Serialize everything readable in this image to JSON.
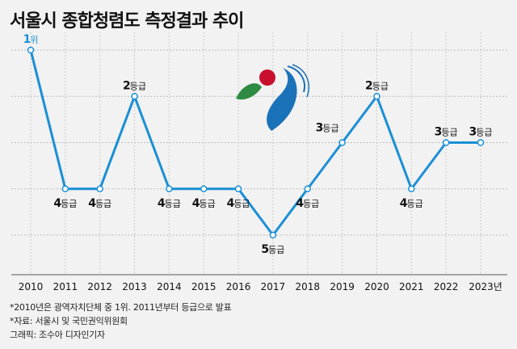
{
  "title": "서울시 종합청렴도 측정결과 추이",
  "chart_data": {
    "type": "line",
    "title": "서울시 종합청렴도 측정결과 추이",
    "x": [
      "2010",
      "2011",
      "2012",
      "2013",
      "2014",
      "2015",
      "2016",
      "2017",
      "2018",
      "2019",
      "2020",
      "2021",
      "2022",
      "2023년"
    ],
    "values": [
      1,
      4,
      4,
      2,
      4,
      4,
      4,
      5,
      4,
      3,
      2,
      4,
      3,
      3
    ],
    "labels": [
      {
        "num": "1",
        "unit": "위",
        "pos": "above"
      },
      {
        "num": "4",
        "unit": "등급",
        "pos": "below"
      },
      {
        "num": "4",
        "unit": "등급",
        "pos": "below"
      },
      {
        "num": "2",
        "unit": "등급",
        "pos": "above"
      },
      {
        "num": "4",
        "unit": "등급",
        "pos": "below"
      },
      {
        "num": "4",
        "unit": "등급",
        "pos": "below"
      },
      {
        "num": "4",
        "unit": "등급",
        "pos": "below"
      },
      {
        "num": "5",
        "unit": "등급",
        "pos": "below"
      },
      {
        "num": "4",
        "unit": "등급",
        "pos": "below"
      },
      {
        "num": "3",
        "unit": "등급",
        "pos": "left"
      },
      {
        "num": "2",
        "unit": "등급",
        "pos": "above"
      },
      {
        "num": "4",
        "unit": "등급",
        "pos": "below"
      },
      {
        "num": "3",
        "unit": "등급",
        "pos": "above"
      },
      {
        "num": "3",
        "unit": "등급",
        "pos": "above"
      }
    ],
    "ylim": [
      1,
      5
    ],
    "y_inverted": true,
    "grid": true,
    "line_color": "#1a8fd6",
    "first_label_color": "#1a8fd6"
  },
  "notes": [
    "*2010년은 광역자치단체 중 1위. 2011년부터 등급으로 발표",
    "*자료: 서울시 및 국민권익위원회",
    "그래픽: 조수아 디자인기자"
  ]
}
